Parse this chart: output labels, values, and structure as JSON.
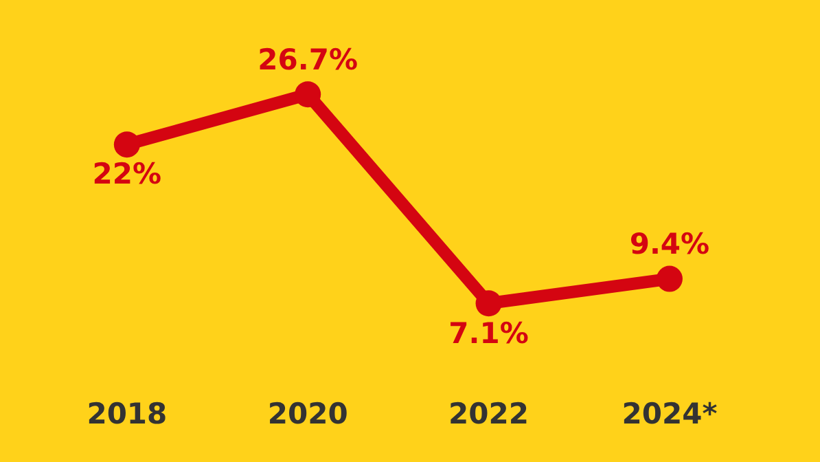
{
  "chart_data": {
    "type": "line",
    "categories": [
      "2018",
      "2020",
      "2022",
      "2024*"
    ],
    "series": [
      {
        "color": "#d40511",
        "values": [
          22,
          26.7,
          7.1,
          9.4
        ],
        "value_labels": [
          "22%",
          "26.7%",
          "7.1%",
          "9.4%"
        ]
      }
    ],
    "tick_labels": "x",
    "grid": false,
    "marker": "circle",
    "line_style": "solid"
  }
}
